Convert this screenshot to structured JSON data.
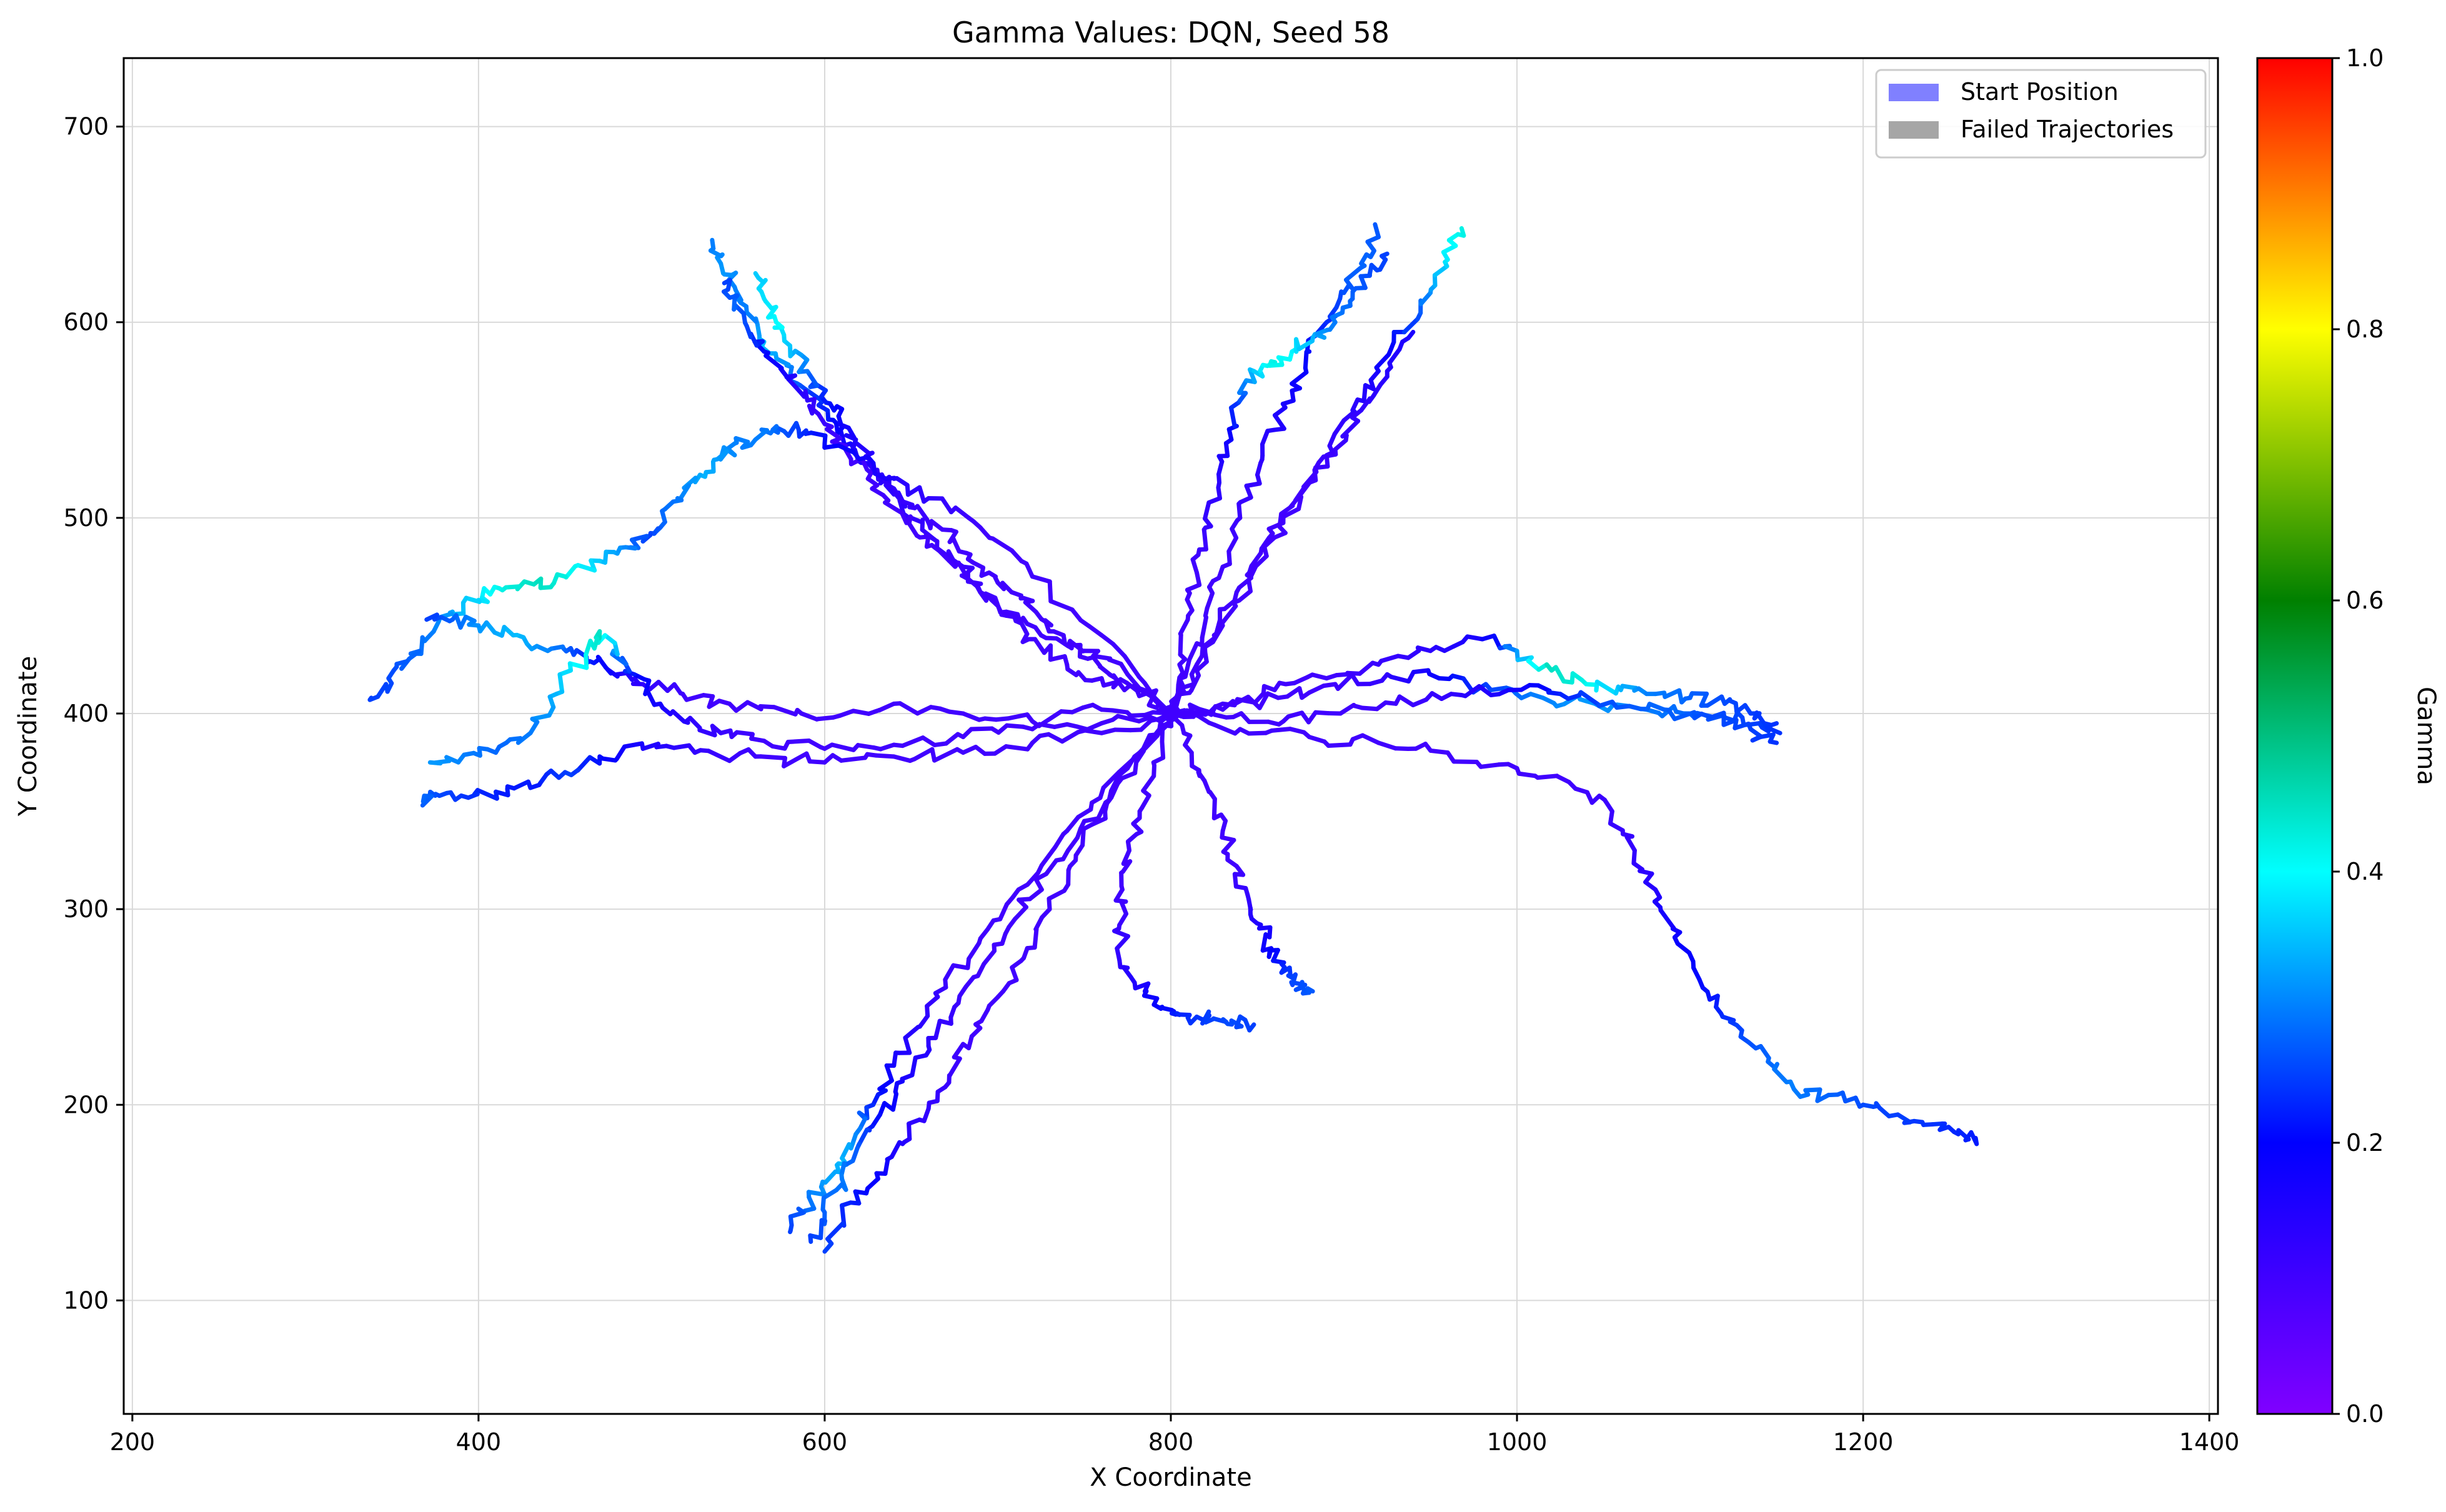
{
  "chart_data": {
    "type": "line",
    "title": "Gamma Values: DQN, Seed 58",
    "xlabel": "X Coordinate",
    "ylabel": "Y Coordinate",
    "xlim": [
      195,
      1405
    ],
    "ylim": [
      42,
      735
    ],
    "xticks": [
      200,
      400,
      600,
      800,
      1000,
      1200,
      1400
    ],
    "yticks": [
      100,
      200,
      300,
      400,
      500,
      600,
      700
    ],
    "grid": true,
    "legend": {
      "placement": "top-right",
      "entries": [
        {
          "label": "Start Position",
          "color": "#8080ff"
        },
        {
          "label": "Failed Trajectories",
          "color": "#a6a6a6"
        }
      ]
    },
    "colorbar": {
      "label": "Gamma",
      "range": [
        0.0,
        1.0
      ],
      "ticks": [
        "0.0",
        "0.2",
        "0.4",
        "0.6",
        "0.8",
        "1.0"
      ],
      "colormap": "rainbow"
    },
    "start_point": [
      800,
      400
    ],
    "series": [
      {
        "x": [
          800,
          780,
          760,
          740,
          718,
          705,
          690,
          680,
          665,
          650,
          640,
          628,
          615,
          605,
          590,
          578,
          565,
          555,
          548,
          540,
          535
        ],
        "y": [
          400,
          412,
          418,
          425,
          438,
          450,
          462,
          475,
          488,
          500,
          512,
          525,
          538,
          550,
          565,
          578,
          590,
          605,
          618,
          630,
          642
        ],
        "gamma": [
          0.1,
          0.1,
          0.1,
          0.1,
          0.1,
          0.1,
          0.1,
          0.11,
          0.11,
          0.12,
          0.13,
          0.14,
          0.16,
          0.2,
          0.25,
          0.3,
          0.35,
          0.3,
          0.3,
          0.32,
          0.3
        ]
      },
      {
        "x": [
          800,
          785,
          768,
          752,
          738,
          722,
          708,
          695,
          682,
          668,
          652,
          640,
          628,
          618,
          608,
          598,
          590,
          580,
          572,
          565,
          560
        ],
        "y": [
          400,
          410,
          418,
          428,
          440,
          452,
          462,
          472,
          482,
          494,
          505,
          515,
          528,
          540,
          552,
          562,
          575,
          588,
          600,
          612,
          625
        ],
        "gamma": [
          0.1,
          0.1,
          0.1,
          0.1,
          0.1,
          0.1,
          0.1,
          0.1,
          0.1,
          0.1,
          0.11,
          0.12,
          0.13,
          0.15,
          0.18,
          0.22,
          0.28,
          0.35,
          0.4,
          0.38,
          0.36
        ]
      },
      {
        "x": [
          800,
          775,
          750,
          725,
          705,
          688,
          672,
          655,
          640,
          625,
          612,
          600,
          590,
          578,
          565,
          555,
          548,
          542
        ],
        "y": [
          400,
          420,
          432,
          440,
          452,
          465,
          478,
          490,
          505,
          520,
          535,
          548,
          560,
          572,
          585,
          598,
          612,
          620
        ],
        "gamma": [
          0.1,
          0.1,
          0.1,
          0.1,
          0.1,
          0.1,
          0.1,
          0.1,
          0.1,
          0.1,
          0.1,
          0.11,
          0.12,
          0.15,
          0.2,
          0.25,
          0.28,
          0.25
        ]
      },
      {
        "x": [
          800,
          760,
          720,
          690,
          660,
          640,
          620,
          600,
          585,
          570,
          560,
          548,
          538,
          528,
          515,
          505,
          495,
          485,
          470,
          450,
          432,
          412,
          400,
          385,
          372,
          360,
          348,
          338
        ],
        "y": [
          400,
          440,
          470,
          495,
          510,
          520,
          530,
          538,
          545,
          545,
          540,
          538,
          530,
          522,
          510,
          495,
          488,
          485,
          478,
          470,
          466,
          464,
          458,
          452,
          440,
          428,
          418,
          408
        ],
        "gamma": [
          0.1,
          0.1,
          0.1,
          0.1,
          0.12,
          0.14,
          0.17,
          0.2,
          0.24,
          0.28,
          0.3,
          0.3,
          0.32,
          0.34,
          0.3,
          0.28,
          0.25,
          0.3,
          0.35,
          0.42,
          0.45,
          0.42,
          0.38,
          0.34,
          0.3,
          0.28,
          0.26,
          0.25
        ]
      },
      {
        "x": [
          800,
          760,
          720,
          680,
          640,
          605,
          575,
          545,
          518,
          495,
          480,
          470,
          455,
          440,
          420,
          400,
          385,
          370
        ],
        "y": [
          400,
          402,
          396,
          400,
          405,
          398,
          402,
          405,
          410,
          415,
          420,
          428,
          430,
          432,
          440,
          445,
          448,
          448
        ],
        "gamma": [
          0.1,
          0.1,
          0.1,
          0.1,
          0.1,
          0.1,
          0.1,
          0.1,
          0.1,
          0.12,
          0.15,
          0.2,
          0.25,
          0.3,
          0.35,
          0.32,
          0.28,
          0.25
        ]
      },
      {
        "x": [
          800,
          760,
          720,
          680,
          640,
          600,
          565,
          540,
          520,
          505,
          490,
          478,
          470,
          462,
          445,
          430,
          410,
          390,
          372
        ],
        "y": [
          400,
          395,
          392,
          388,
          384,
          382,
          386,
          390,
          396,
          405,
          420,
          432,
          442,
          430,
          410,
          390,
          380,
          377,
          375
        ],
        "gamma": [
          0.1,
          0.1,
          0.1,
          0.1,
          0.1,
          0.1,
          0.1,
          0.11,
          0.13,
          0.16,
          0.2,
          0.3,
          0.45,
          0.42,
          0.35,
          0.3,
          0.28,
          0.3,
          0.32
        ]
      },
      {
        "x": [
          800,
          760,
          720,
          680,
          640,
          600,
          560,
          525,
          495,
          470,
          450,
          430,
          410,
          390,
          375,
          368
        ],
        "y": [
          400,
          390,
          385,
          380,
          378,
          375,
          378,
          380,
          382,
          378,
          370,
          362,
          360,
          358,
          358,
          355
        ],
        "gamma": [
          0.1,
          0.1,
          0.1,
          0.1,
          0.1,
          0.1,
          0.1,
          0.12,
          0.15,
          0.2,
          0.25,
          0.22,
          0.22,
          0.24,
          0.26,
          0.28
        ]
      },
      {
        "x": [
          800,
          770,
          740,
          712,
          690,
          670,
          655,
          640,
          628,
          618,
          608,
          598,
          588,
          580
        ],
        "y": [
          400,
          370,
          340,
          310,
          285,
          260,
          240,
          220,
          200,
          185,
          170,
          158,
          145,
          135
        ],
        "gamma": [
          0.1,
          0.1,
          0.1,
          0.1,
          0.1,
          0.11,
          0.13,
          0.16,
          0.22,
          0.3,
          0.35,
          0.32,
          0.28,
          0.25
        ]
      },
      {
        "x": [
          800,
          775,
          750,
          728,
          710,
          692,
          675,
          660,
          645,
          632,
          620,
          610,
          600,
          592
        ],
        "y": [
          400,
          372,
          345,
          318,
          295,
          272,
          250,
          230,
          212,
          195,
          180,
          162,
          145,
          130
        ],
        "gamma": [
          0.1,
          0.1,
          0.1,
          0.1,
          0.1,
          0.1,
          0.11,
          0.13,
          0.16,
          0.2,
          0.26,
          0.3,
          0.28,
          0.25
        ]
      },
      {
        "x": [
          800,
          780,
          762,
          745,
          730,
          715,
          700,
          685,
          672,
          660,
          645,
          630,
          615,
          600
        ],
        "y": [
          400,
          375,
          350,
          325,
          300,
          275,
          255,
          235,
          215,
          198,
          180,
          165,
          150,
          125
        ],
        "gamma": [
          0.1,
          0.1,
          0.1,
          0.1,
          0.1,
          0.1,
          0.1,
          0.1,
          0.11,
          0.12,
          0.14,
          0.18,
          0.22,
          0.25
        ]
      },
      {
        "x": [
          800,
          790,
          782,
          776,
          772,
          770,
          775,
          785,
          795,
          805,
          815,
          825,
          835,
          848
        ],
        "y": [
          400,
          375,
          350,
          330,
          310,
          290,
          270,
          258,
          250,
          246,
          245,
          244,
          243,
          241
        ],
        "gamma": [
          0.1,
          0.1,
          0.1,
          0.1,
          0.1,
          0.11,
          0.13,
          0.16,
          0.2,
          0.22,
          0.24,
          0.25,
          0.26,
          0.25
        ]
      },
      {
        "x": [
          800,
          812,
          822,
          830,
          838,
          845,
          852,
          858,
          864,
          870,
          876,
          882
        ],
        "y": [
          400,
          380,
          360,
          340,
          322,
          305,
          292,
          280,
          272,
          265,
          260,
          258
        ],
        "gamma": [
          0.1,
          0.1,
          0.1,
          0.1,
          0.1,
          0.12,
          0.15,
          0.18,
          0.22,
          0.25,
          0.26,
          0.27
        ]
      },
      {
        "x": [
          800,
          840,
          880,
          920,
          960,
          1000,
          1030,
          1055,
          1068,
          1080,
          1090,
          1102,
          1115,
          1130,
          1145,
          1160,
          1180,
          1200,
          1220,
          1240,
          1255,
          1265
        ],
        "y": [
          400,
          392,
          388,
          385,
          380,
          372,
          365,
          350,
          330,
          310,
          290,
          270,
          250,
          238,
          222,
          208,
          205,
          200,
          195,
          190,
          185,
          183
        ],
        "gamma": [
          0.1,
          0.1,
          0.1,
          0.1,
          0.1,
          0.1,
          0.1,
          0.11,
          0.12,
          0.14,
          0.17,
          0.2,
          0.22,
          0.25,
          0.28,
          0.3,
          0.28,
          0.26,
          0.25,
          0.24,
          0.23,
          0.22
        ]
      },
      {
        "x": [
          800,
          830,
          860,
          890,
          920,
          950,
          980,
          1000,
          1020,
          1040,
          1060,
          1080,
          1100,
          1120,
          1135,
          1150
        ],
        "y": [
          400,
          405,
          412,
          418,
          425,
          432,
          438,
          432,
          422,
          415,
          412,
          410,
          408,
          405,
          400,
          395
        ],
        "gamma": [
          0.1,
          0.1,
          0.1,
          0.1,
          0.11,
          0.13,
          0.16,
          0.3,
          0.45,
          0.42,
          0.35,
          0.3,
          0.28,
          0.26,
          0.25,
          0.24
        ]
      },
      {
        "x": [
          800,
          830,
          862,
          895,
          925,
          955,
          985,
          1015,
          1045,
          1075,
          1100,
          1120,
          1140,
          1152
        ],
        "y": [
          400,
          402,
          408,
          415,
          420,
          418,
          412,
          408,
          405,
          402,
          400,
          398,
          395,
          390
        ],
        "gamma": [
          0.1,
          0.1,
          0.1,
          0.1,
          0.12,
          0.18,
          0.25,
          0.3,
          0.32,
          0.3,
          0.28,
          0.26,
          0.25,
          0.24
        ]
      },
      {
        "x": [
          800,
          832,
          865,
          898,
          930,
          962,
          995,
          1025,
          1055,
          1085,
          1112,
          1135,
          1150
        ],
        "y": [
          400,
          398,
          396,
          400,
          405,
          410,
          412,
          410,
          406,
          402,
          398,
          392,
          385
        ],
        "gamma": [
          0.1,
          0.1,
          0.1,
          0.1,
          0.1,
          0.12,
          0.16,
          0.22,
          0.26,
          0.28,
          0.26,
          0.25,
          0.24
        ]
      },
      {
        "x": [
          800,
          810,
          820,
          830,
          840,
          850,
          860,
          870,
          880,
          890,
          900,
          910,
          918
        ],
        "y": [
          400,
          425,
          450,
          475,
          500,
          522,
          545,
          565,
          585,
          600,
          615,
          630,
          650
        ],
        "gamma": [
          0.1,
          0.1,
          0.1,
          0.1,
          0.11,
          0.12,
          0.14,
          0.17,
          0.2,
          0.23,
          0.26,
          0.28,
          0.27
        ]
      },
      {
        "x": [
          800,
          815,
          830,
          845,
          860,
          875,
          890,
          905,
          920,
          935,
          950,
          960,
          968
        ],
        "y": [
          400,
          422,
          445,
          468,
          490,
          512,
          532,
          555,
          575,
          595,
          615,
          632,
          648
        ],
        "gamma": [
          0.1,
          0.1,
          0.1,
          0.1,
          0.1,
          0.1,
          0.11,
          0.13,
          0.16,
          0.22,
          0.3,
          0.38,
          0.42
        ]
      },
      {
        "x": [
          800,
          805,
          810,
          815,
          820,
          828,
          835,
          840,
          848,
          858,
          870,
          882,
          895,
          905,
          915,
          925
        ],
        "y": [
          400,
          425,
          450,
          472,
          495,
          518,
          540,
          560,
          575,
          580,
          585,
          592,
          600,
          612,
          625,
          635
        ],
        "gamma": [
          0.1,
          0.1,
          0.1,
          0.1,
          0.11,
          0.13,
          0.17,
          0.25,
          0.35,
          0.42,
          0.4,
          0.35,
          0.3,
          0.28,
          0.26,
          0.25
        ]
      },
      {
        "x": [
          800,
          812,
          825,
          838,
          852,
          865,
          880,
          895,
          910,
          925,
          940
        ],
        "y": [
          400,
          420,
          440,
          462,
          482,
          500,
          518,
          535,
          555,
          575,
          595
        ],
        "gamma": [
          0.1,
          0.1,
          0.1,
          0.1,
          0.1,
          0.1,
          0.1,
          0.11,
          0.12,
          0.14,
          0.16
        ]
      }
    ]
  }
}
